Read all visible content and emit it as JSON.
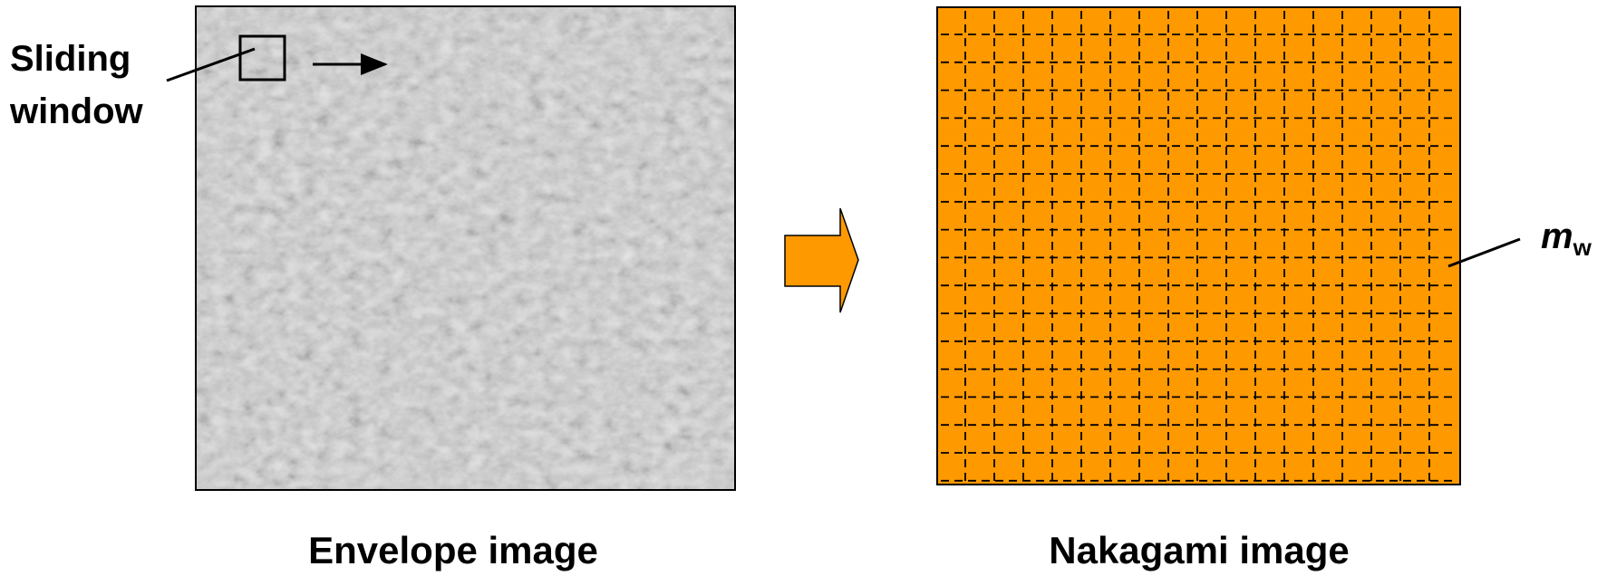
{
  "annotations": {
    "sliding_window": [
      "Sliding",
      "window"
    ],
    "m_w": {
      "main": "m",
      "sub": "w"
    }
  },
  "captions": {
    "envelope": "Envelope image",
    "nakagami": "Nakagami image"
  }
}
